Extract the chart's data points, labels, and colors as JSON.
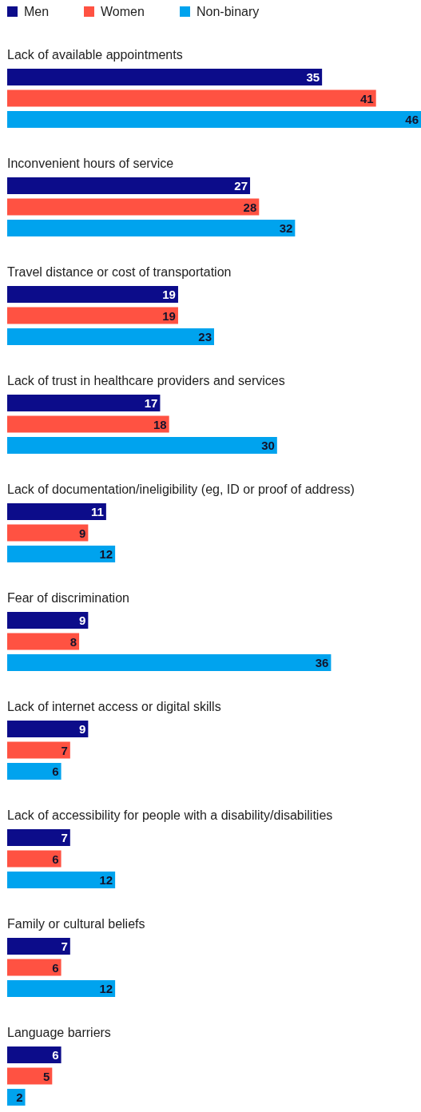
{
  "chart_data": {
    "type": "bar",
    "orientation": "horizontal",
    "data_labels": true,
    "legend": "top left",
    "categories": [
      "Lack of available appointments",
      "Inconvenient hours of service",
      "Travel distance or cost of transportation",
      "Lack of trust in healthcare providers and services",
      "Lack of documentation/ineligibility (eg, ID or proof of address)",
      "Fear of discrimination",
      "Lack of internet access or digital skills",
      "Lack of accessibility for people with a disability/disabilities",
      "Family or cultural beliefs",
      "Language barriers"
    ],
    "series": [
      {
        "name": "Men",
        "color": "#0c0c8a",
        "values": [
          35,
          27,
          19,
          17,
          11,
          9,
          9,
          7,
          7,
          6
        ]
      },
      {
        "name": "Women",
        "color": "#ff5242",
        "values": [
          41,
          28,
          19,
          18,
          9,
          8,
          7,
          6,
          6,
          5
        ]
      },
      {
        "name": "Non-binary",
        "color": "#00a3ee",
        "values": [
          46,
          32,
          23,
          30,
          12,
          36,
          6,
          12,
          12,
          2
        ]
      }
    ]
  }
}
